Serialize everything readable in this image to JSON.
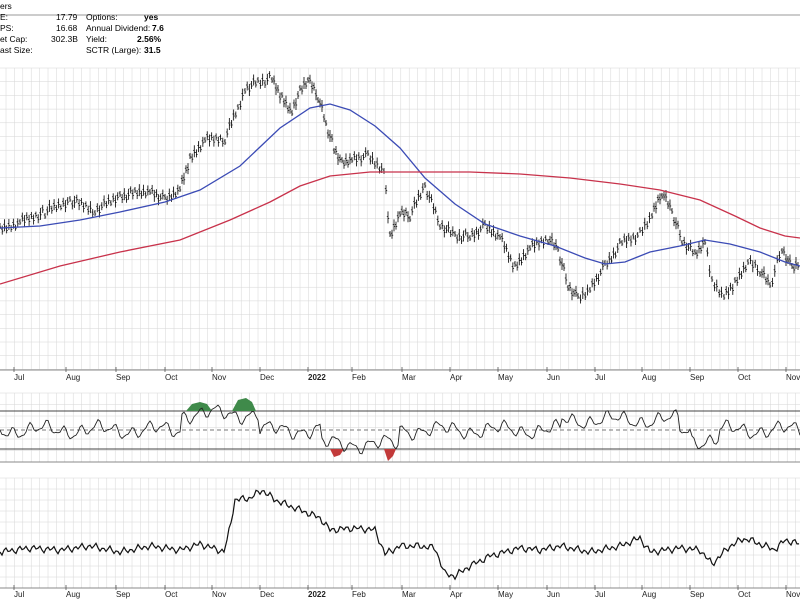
{
  "header": {
    "title_fragment": "ers",
    "stats_left": [
      {
        "label": "E:",
        "value": "17.79"
      },
      {
        "label": "PS:",
        "value": "16.68"
      },
      {
        "label": "et Cap:",
        "value": "302.3B"
      },
      {
        "label": "ast Size:",
        "value": ""
      }
    ],
    "stats_right": [
      {
        "label": "Options:",
        "value": "yes"
      },
      {
        "label": "Annual Dividend:",
        "value": "7.6"
      },
      {
        "label": "Yield:",
        "value": "2.56%"
      },
      {
        "label": "SCTR (Large):",
        "value": "31.5"
      }
    ]
  },
  "chart_data": [
    {
      "type": "ohlc",
      "panel": "price",
      "x_tick_labels": [
        "Jul",
        "Aug",
        "Sep",
        "Oct",
        "Nov",
        "Dec",
        "2022",
        "Feb",
        "Mar",
        "Apr",
        "May",
        "Jun",
        "Jul",
        "Aug",
        "Sep",
        "Oct",
        "Nov"
      ],
      "x_tick_bold": "2022",
      "series": [
        {
          "kind": "price-bars",
          "color": "#000000"
        },
        {
          "kind": "moving-average-short",
          "color": "#3b4bb5"
        },
        {
          "kind": "moving-average-long",
          "color": "#c8324b"
        }
      ],
      "grid": true
    },
    {
      "type": "line",
      "panel": "oscillator",
      "bands": [
        "upper",
        "mid",
        "lower"
      ],
      "fill_colors": {
        "above": "#3f8a4a",
        "below": "#c23a3a"
      },
      "x_tick_labels": [],
      "grid": true
    },
    {
      "type": "line",
      "panel": "relative-strength",
      "x_tick_labels": [
        "Jul",
        "Aug",
        "Sep",
        "Oct",
        "Nov",
        "Dec",
        "2022",
        "Feb",
        "Mar",
        "Apr",
        "May",
        "Jun",
        "Jul",
        "Aug",
        "Sep",
        "Oct",
        "Nov"
      ],
      "x_tick_bold": "2022",
      "grid": true
    }
  ],
  "colors": {
    "grid": "#d6d6d6",
    "axis": "#555555",
    "text": "#222222"
  }
}
